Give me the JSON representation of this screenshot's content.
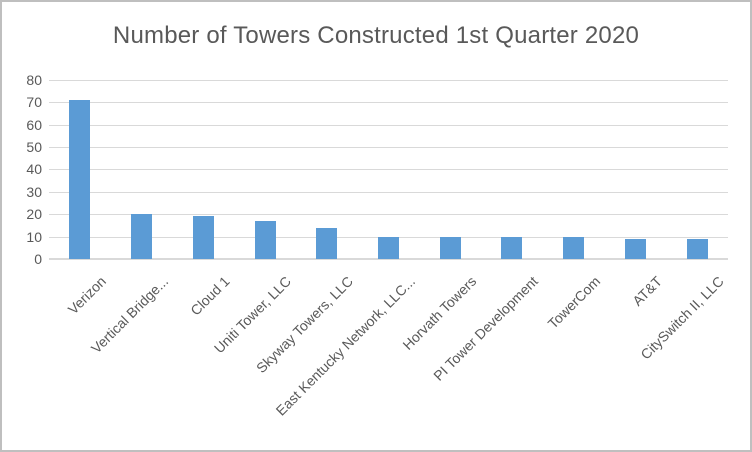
{
  "chart_data": {
    "type": "bar",
    "title": "Number of Towers Constructed 1st Quarter 2020",
    "categories": [
      "Verizon",
      "Vertical Bridge...",
      "Cloud 1",
      "Uniti Tower, LLC",
      "Skyway Towers, LLC",
      "East Kentucky Network, LLC...",
      "Horvath Towers",
      "PI Tower Development",
      "TowerCom",
      "AT&T",
      "CitySwitch II, LLC"
    ],
    "values": [
      71,
      20,
      19,
      17,
      14,
      10,
      10,
      10,
      10,
      9,
      9
    ],
    "xlabel": "",
    "ylabel": "",
    "ylim": [
      0,
      80
    ],
    "y_ticks": [
      0,
      10,
      20,
      30,
      40,
      50,
      60,
      70,
      80
    ],
    "grid": true,
    "legend": "none",
    "x_label_rotation_deg": -45,
    "colors": {
      "bar": "#5b9bd5",
      "gridline": "#d9d9d9",
      "axis": "#d9d9d9",
      "text": "#595959",
      "frame_border": "#bfbfbf",
      "background": "#ffffff"
    }
  }
}
